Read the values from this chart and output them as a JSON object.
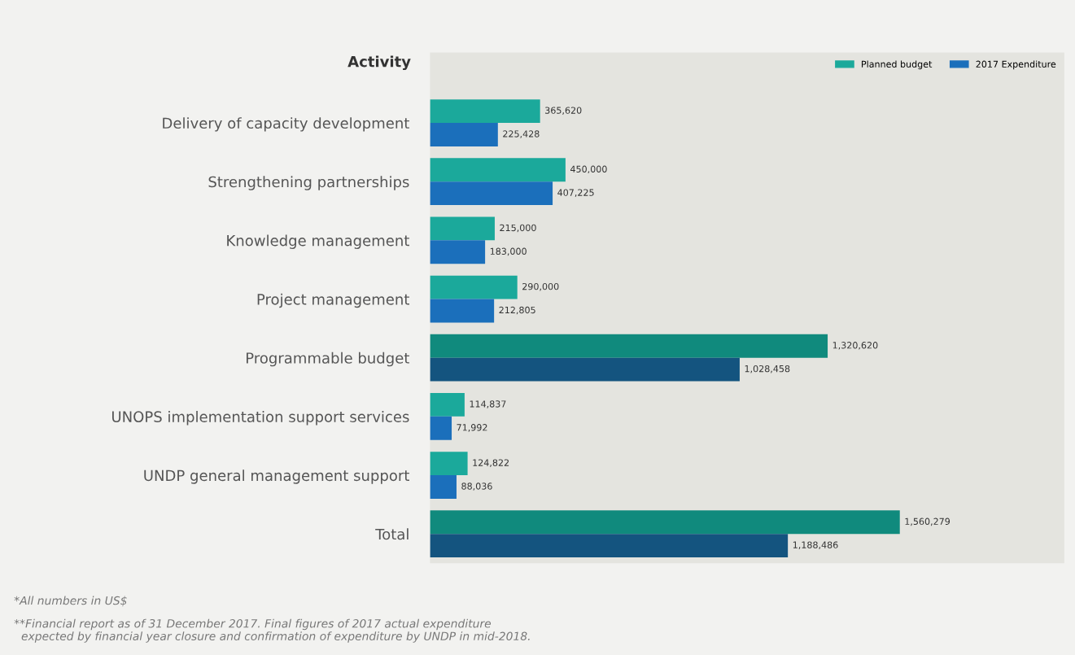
{
  "chart_data": {
    "type": "bar",
    "orientation": "horizontal",
    "ylabel": "Activity",
    "categories": [
      "Delivery of capacity development",
      "Strengthening partnerships",
      "Knowledge management",
      "Project management",
      "Programmable budget",
      "UNOPS implementation support services",
      "UNDP general management support",
      "Total"
    ],
    "series": [
      {
        "name": "Planned budget",
        "color": "#1ba99b",
        "colors": [
          "#1ba99b",
          "#1ba99b",
          "#1ba99b",
          "#1ba99b",
          "#108a7d",
          "#1ba99b",
          "#1ba99b",
          "#108a7d"
        ],
        "values": [
          365620,
          450000,
          215000,
          290000,
          1320620,
          114837,
          124822,
          1560279
        ],
        "value_labels": [
          "365,620",
          "450,000",
          "215,000",
          "290,000",
          "1,320,620",
          "114,837",
          "124,822",
          "1,560,279"
        ]
      },
      {
        "name": "2017 Expenditure",
        "color": "#1b6fbb",
        "colors": [
          "#1b6fbb",
          "#1b6fbb",
          "#1b6fbb",
          "#1b6fbb",
          "#14547f",
          "#1b6fbb",
          "#1b6fbb",
          "#14547f"
        ],
        "values": [
          225428,
          407225,
          183000,
          212805,
          1028458,
          71992,
          88036,
          1188486
        ],
        "value_labels": [
          "225,428",
          "407,225",
          "183,000",
          "212,805",
          "1,028,458",
          "71,992",
          "88,036",
          "1,188,486"
        ]
      }
    ],
    "legend": "top right",
    "grid": false,
    "annotations": [
      "*All numbers in US$",
      "**Financial report as of 31 December 2017. Final figures of 2017 actual expenditure\n  expected by financial year closure and confirmation of expenditure by UNDP in mid-2018."
    ]
  }
}
